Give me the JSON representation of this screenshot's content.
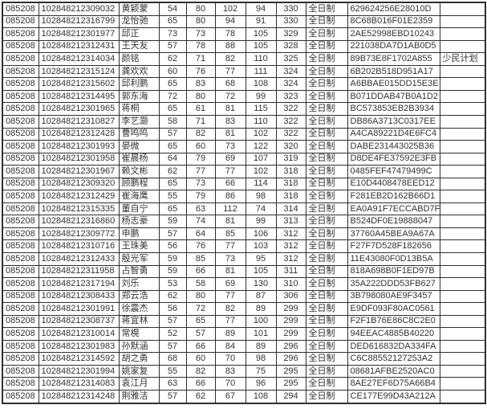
{
  "colors": {
    "background": "#ffffff",
    "grid_border": "#2f2f2f",
    "text": "#333333"
  },
  "table": {
    "column_keys": [
      "program-code",
      "candidate-id",
      "name",
      "score-1",
      "score-2",
      "score-3",
      "score-4",
      "total-score",
      "study-mode",
      "check-code",
      "remark"
    ],
    "numeric_columns": [
      3,
      4,
      5,
      6,
      7
    ],
    "rows": [
      [
        "085208",
        "102848212309032",
        "黄颖蒙",
        "54",
        "80",
        "102",
        "94",
        "330",
        "全日制",
        "629624256E28010D",
        ""
      ],
      [
        "085208",
        "102848212316799",
        "龙怡驰",
        "65",
        "80",
        "94",
        "91",
        "330",
        "全日制",
        "8C68B016F01E2359",
        ""
      ],
      [
        "085208",
        "102848212301977",
        "邱正",
        "73",
        "73",
        "78",
        "105",
        "329",
        "全日制",
        "2AE52998EBD10243",
        ""
      ],
      [
        "085208",
        "102848212312431",
        "王天友",
        "57",
        "78",
        "88",
        "105",
        "328",
        "全日制",
        "221038DA7D1AB0D5",
        ""
      ],
      [
        "085208",
        "102848212314034",
        "颜铭",
        "62",
        "71",
        "82",
        "110",
        "325",
        "全日制",
        "89B73E8F1702A855",
        "少民计划"
      ],
      [
        "085208",
        "102848212315124",
        "龚欢欢",
        "60",
        "76",
        "77",
        "111",
        "324",
        "全日制",
        "6B202B518D951A17",
        ""
      ],
      [
        "085208",
        "102848212315602",
        "邱利鹏",
        "65",
        "83",
        "68",
        "108",
        "324",
        "全日制",
        "A6BBAE015DD15E3E",
        ""
      ],
      [
        "085208",
        "102848212314495",
        "郭东海",
        "72",
        "80",
        "72",
        "99",
        "323",
        "全日制",
        "B071DDAB47B0A1D2",
        ""
      ],
      [
        "085208",
        "102848212301965",
        "蒋桐",
        "65",
        "61",
        "81",
        "115",
        "322",
        "全日制",
        "BC573853EB2B3934",
        ""
      ],
      [
        "085208",
        "102848212310827",
        "李艺灏",
        "58",
        "71",
        "83",
        "110",
        "322",
        "全日制",
        "DB86A3713C0317EE",
        ""
      ],
      [
        "085208",
        "102848212312428",
        "曹鸣鸣",
        "57",
        "82",
        "81",
        "102",
        "322",
        "全日制",
        "A4CA89221D4E6FC4",
        ""
      ],
      [
        "085208",
        "102848212301993",
        "晏微",
        "65",
        "60",
        "73",
        "122",
        "320",
        "全日制",
        "DABE231443025B36",
        ""
      ],
      [
        "085208",
        "102848212301958",
        "崔晨杨",
        "64",
        "79",
        "69",
        "107",
        "319",
        "全日制",
        "D8DE4FE37592E3FB",
        ""
      ],
      [
        "085208",
        "102848212301967",
        "赖文彬",
        "62",
        "77",
        "77",
        "102",
        "318",
        "全日制",
        "0485FEF47479499C",
        ""
      ],
      [
        "085208",
        "102848212309320",
        "顾鹏程",
        "65",
        "73",
        "66",
        "114",
        "318",
        "全日制",
        "E10D4408478EED12",
        ""
      ],
      [
        "085208",
        "102848212312429",
        "崔海鹰",
        "55",
        "79",
        "86",
        "98",
        "318",
        "全日制",
        "F281EB2D162B66D1",
        ""
      ],
      [
        "085208",
        "102848212315335",
        "董自宁",
        "65",
        "63",
        "112",
        "74",
        "314",
        "全日制",
        "EA0A91F7ECCABD7F",
        ""
      ],
      [
        "085208",
        "102848212316860",
        "杨志豪",
        "59",
        "74",
        "81",
        "99",
        "313",
        "全日制",
        "B524DF0E19888047",
        ""
      ],
      [
        "085208",
        "102848212309772",
        "申鹏",
        "57",
        "64",
        "85",
        "106",
        "312",
        "全日制",
        "37760A45BEA9A67A",
        ""
      ],
      [
        "085208",
        "102848212310716",
        "王珠美",
        "56",
        "76",
        "77",
        "103",
        "312",
        "全日制",
        "F27F7D528F182656",
        ""
      ],
      [
        "085208",
        "102848212312433",
        "殷光军",
        "59",
        "85",
        "73",
        "95",
        "312",
        "全日制",
        "11E43080F0D13B5A",
        ""
      ],
      [
        "085208",
        "102848212311958",
        "占智勇",
        "59",
        "66",
        "81",
        "105",
        "311",
        "全日制",
        "818A698B0F1ED97B",
        ""
      ],
      [
        "085208",
        "102848212317194",
        "刘乐",
        "53",
        "58",
        "69",
        "130",
        "310",
        "全日制",
        "35A222DDD53FB627",
        ""
      ],
      [
        "085208",
        "102848212308433",
        "郑云浩",
        "62",
        "80",
        "77",
        "87",
        "306",
        "全日制",
        "3B798080AE9F3457",
        ""
      ],
      [
        "085208",
        "102848212301991",
        "徐震杰",
        "56",
        "72",
        "82",
        "89",
        "299",
        "全日制",
        "E9DF093F80AC0561",
        ""
      ],
      [
        "085208",
        "102848212308737",
        "蒋宜林",
        "57",
        "65",
        "77",
        "100",
        "299",
        "全日制",
        "F2F1B76E86C8C2E0",
        ""
      ],
      [
        "085208",
        "102848212310014",
        "常榥",
        "52",
        "57",
        "89",
        "101",
        "299",
        "全日制",
        "94EEAC4885B40220",
        ""
      ],
      [
        "085208",
        "102848212301983",
        "孙默涵",
        "57",
        "66",
        "84",
        "89",
        "296",
        "全日制",
        "DED616832DA334FA",
        ""
      ],
      [
        "085208",
        "102848212314592",
        "胡之勇",
        "68",
        "60",
        "70",
        "98",
        "296",
        "全日制",
        "C6C88552127253A2",
        ""
      ],
      [
        "085208",
        "102848212301994",
        "姚家复",
        "55",
        "82",
        "83",
        "75",
        "295",
        "全日制",
        "08681AFBE2520AC0",
        ""
      ],
      [
        "085208",
        "102848212314083",
        "袁江月",
        "63",
        "66",
        "70",
        "96",
        "295",
        "全日制",
        "8AE27EF6D75A66B4",
        ""
      ],
      [
        "085208",
        "102848212314248",
        "荆雅洁",
        "57",
        "62",
        "67",
        "108",
        "294",
        "全日制",
        "CE177E99D43A212A",
        ""
      ]
    ]
  }
}
